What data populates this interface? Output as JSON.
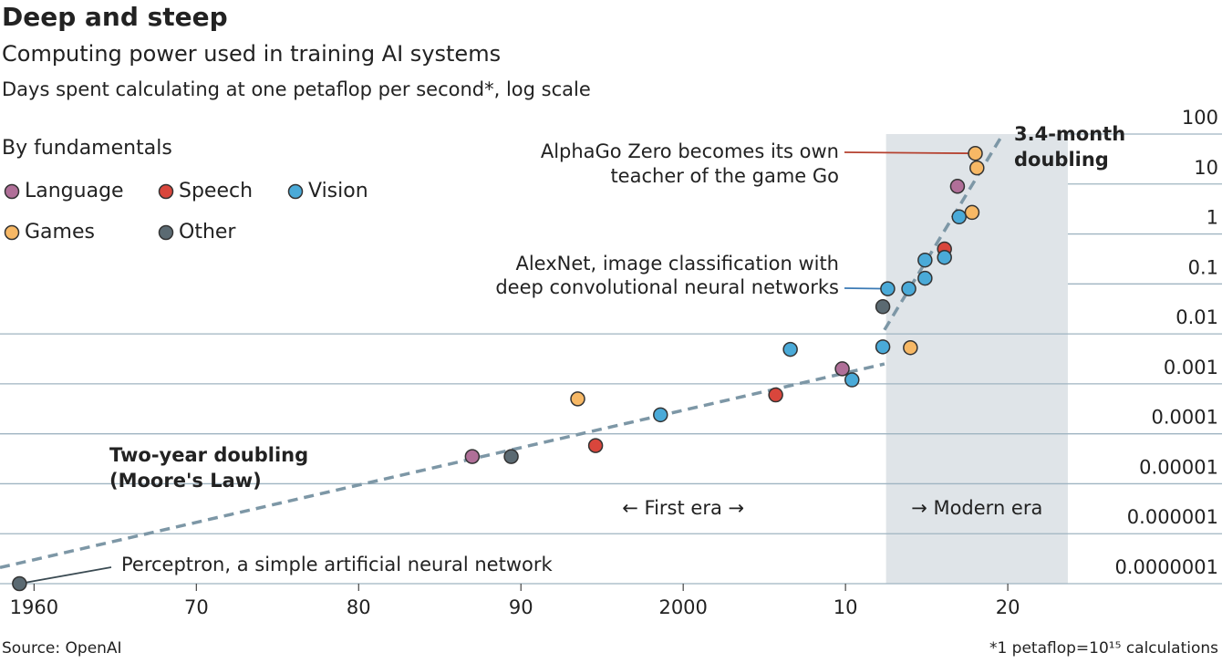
{
  "chart_data": {
    "type": "scatter",
    "title": "Deep and steep",
    "subtitle": "Computing power used in training AI systems",
    "y_label": "Days spent calculating at one petaflop per second*, log scale",
    "legend_title": "By fundamentals",
    "log_y": true,
    "grid": true,
    "xlim": [
      1957.9,
      2033.2
    ],
    "ylim": [
      1e-07,
      100
    ],
    "xticks": [
      1960,
      {
        "value": 1970,
        "label": "70"
      },
      {
        "value": 1980,
        "label": "80"
      },
      {
        "value": 1990,
        "label": "90"
      },
      2000,
      {
        "value": 2010,
        "label": "10"
      },
      {
        "value": 2020,
        "label": "20"
      }
    ],
    "yticks": [
      {
        "value": 1e-07,
        "label": "0.0000001"
      },
      1e-06,
      1e-05,
      0.0001,
      0.001,
      0.01,
      0.1,
      1,
      10,
      100
    ],
    "series": [
      {
        "name": "Language",
        "color": "#b06f98",
        "x": [
          1987.0,
          2009.8,
          2016.9
        ],
        "values": [
          3.5e-05,
          0.002,
          9
        ]
      },
      {
        "name": "Speech",
        "color": "#d9463c",
        "x": [
          1994.6,
          2005.7,
          2016.1
        ],
        "values": [
          5.8e-05,
          0.0006,
          0.5
        ]
      },
      {
        "name": "Vision",
        "color": "#4aaad8",
        "x": [
          1998.6,
          2006.6,
          2010.4,
          2012.3,
          2012.6,
          2013.9,
          2014.9,
          2014.9,
          2016.1,
          2017.0
        ],
        "values": [
          0.00024,
          0.0049,
          0.0012,
          0.0055,
          0.08,
          0.08,
          0.13,
          0.3,
          0.34,
          2.2
        ]
      },
      {
        "name": "Games",
        "color": "#f7b865",
        "x": [
          1993.5,
          2014.0,
          2017.8,
          2018.1,
          2018.0
        ],
        "values": [
          0.0005,
          0.0053,
          2.7,
          21,
          41
        ]
      },
      {
        "name": "Other",
        "color": "#5b6a72",
        "x": [
          1959.1,
          1989.4,
          2012.3
        ],
        "values": [
          1e-07,
          3.5e-05,
          0.035
        ]
      }
    ],
    "trend_lines": [
      {
        "label": [
          "Two-year doubling",
          "(Moore's Law)"
        ],
        "x": [
          1957.9,
          2012.4
        ],
        "values": [
          2.1e-07,
          0.0025
        ]
      },
      {
        "label": [
          "3.4-month",
          "doubling"
        ],
        "x": [
          2012.4,
          2019.7
        ],
        "values": [
          0.012,
          100
        ]
      }
    ],
    "shaded_span": [
      2012.5,
      2023.7
    ],
    "eras": [
      "← First era →",
      "→ Modern era"
    ],
    "annotations": [
      {
        "text": [
          "AlphaGo Zero becomes its own",
          "teacher of the game Go"
        ]
      },
      {
        "text": [
          "AlexNet, image classification with",
          "deep convolutional neural networks"
        ]
      },
      {
        "text": [
          "Perceptron, a simple artificial neural network"
        ]
      }
    ],
    "source": "Source: OpenAI",
    "footnote": "*1 petaflop=10¹⁵ calculations"
  }
}
